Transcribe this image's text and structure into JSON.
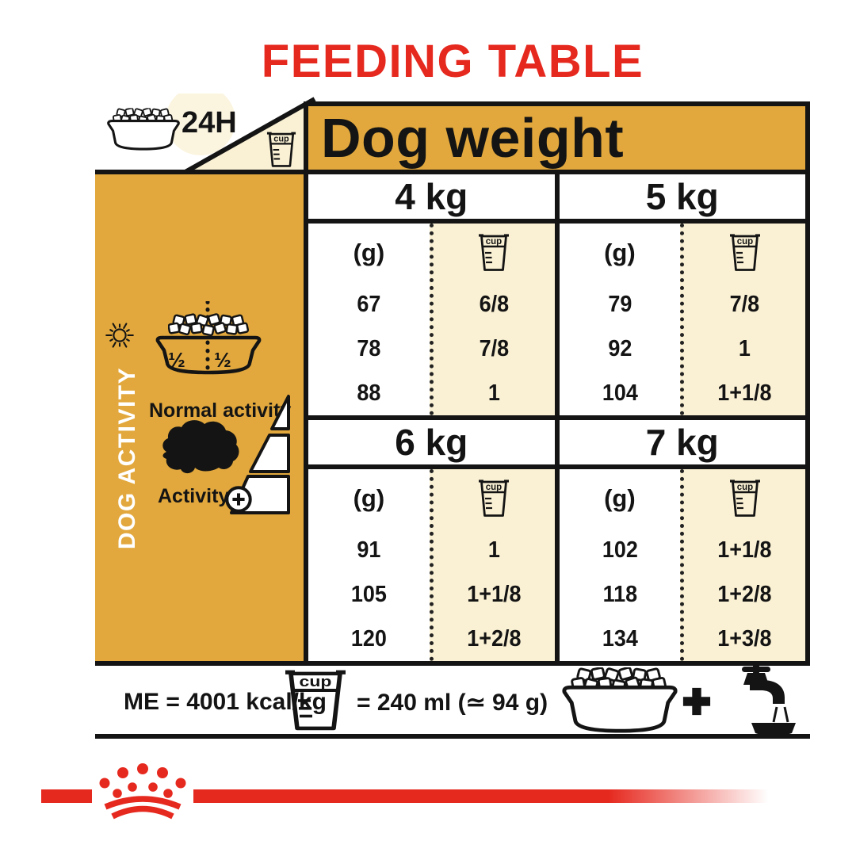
{
  "title": "FEEDING TABLE",
  "colors": {
    "red": "#E6291F",
    "gold": "#E2A83D",
    "cream": "#FAF1D4",
    "ink": "#141414"
  },
  "corner": {
    "daily_ration_label": "24H",
    "cup_label": "cup"
  },
  "table": {
    "dog_weight_label": "Dog weight",
    "grams_unit": "(g)",
    "cup_unit": "cup",
    "sections": [
      {
        "weight": "4 kg",
        "rows": [
          {
            "grams": "67",
            "cups": "6/8"
          },
          {
            "grams": "78",
            "cups": "7/8"
          },
          {
            "grams": "88",
            "cups": "1"
          }
        ]
      },
      {
        "weight": "5 kg",
        "rows": [
          {
            "grams": "79",
            "cups": "7/8"
          },
          {
            "grams": "92",
            "cups": "1"
          },
          {
            "grams": "104",
            "cups": "1+1/8"
          }
        ]
      },
      {
        "weight": "6 kg",
        "rows": [
          {
            "grams": "91",
            "cups": "1"
          },
          {
            "grams": "105",
            "cups": "1+1/8"
          },
          {
            "grams": "120",
            "cups": "1+2/8"
          }
        ]
      },
      {
        "weight": "7 kg",
        "rows": [
          {
            "grams": "102",
            "cups": "1+1/8"
          },
          {
            "grams": "118",
            "cups": "1+2/8"
          },
          {
            "grams": "134",
            "cups": "1+3/8"
          }
        ]
      }
    ]
  },
  "sidebar": {
    "vertical_label": "DOG ACTIVITY",
    "half_left": "½",
    "half_right": "½",
    "normal_activity_label": "Normal activity",
    "activity_label": "Activity"
  },
  "footer": {
    "me_label": "ME = 4001 kcal/kg",
    "cup_equivalence": "= 240 ml (≃ 94 g)",
    "cup_label": "cup",
    "plus": "+"
  }
}
